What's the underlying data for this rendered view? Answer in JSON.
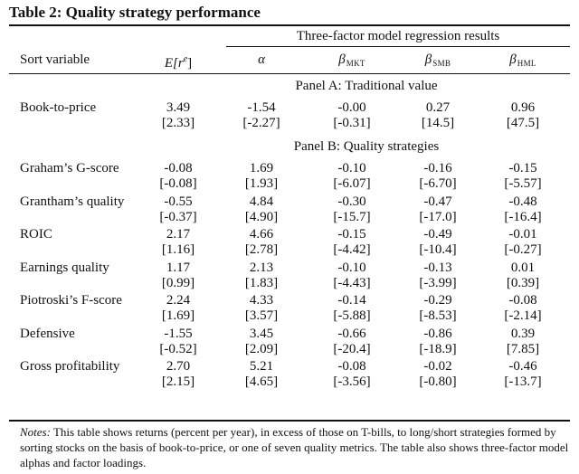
{
  "title": "Table 2: Quality strategy performance",
  "header": {
    "group_label": "Three-factor model regression results",
    "sort_label": "Sort variable",
    "col_er": "E[r",
    "col_er_sup": "e",
    "col_er_close": "]",
    "col_alpha": "α",
    "col_beta": "β",
    "col_mkt": "MKT",
    "col_smb": "SMB",
    "col_hml": "HML"
  },
  "panels": [
    {
      "title": "Panel A: Traditional value",
      "rows": [
        {
          "label": "Book-to-price",
          "values": [
            "3.49",
            "-1.54",
            "-0.00",
            "0.27",
            "0.96"
          ],
          "tstats": [
            "[2.33]",
            "[-2.27]",
            "[-0.31]",
            "[14.5]",
            "[47.5]"
          ]
        }
      ]
    },
    {
      "title": "Panel B: Quality strategies",
      "rows": [
        {
          "label": "Graham’s G-score",
          "values": [
            "-0.08",
            "1.69",
            "-0.10",
            "-0.16",
            "-0.15"
          ],
          "tstats": [
            "[-0.08]",
            "[1.93]",
            "[-6.07]",
            "[-6.70]",
            "[-5.57]"
          ]
        },
        {
          "label": "Grantham’s quality",
          "values": [
            "-0.55",
            "4.84",
            "-0.30",
            "-0.47",
            "-0.48"
          ],
          "tstats": [
            "[-0.37]",
            "[4.90]",
            "[-15.7]",
            "[-17.0]",
            "[-16.4]"
          ]
        },
        {
          "label": "ROIC",
          "values": [
            "2.17",
            "4.66",
            "-0.15",
            "-0.49",
            "-0.01"
          ],
          "tstats": [
            "[1.16]",
            "[2.78]",
            "[-4.42]",
            "[-10.4]",
            "[-0.27]"
          ]
        },
        {
          "label": "Earnings quality",
          "values": [
            "1.17",
            "2.13",
            "-0.10",
            "-0.13",
            "0.01"
          ],
          "tstats": [
            "[0.99]",
            "[1.83]",
            "[-4.43]",
            "[-3.99]",
            "[0.39]"
          ]
        },
        {
          "label": "Piotroski’s F-score",
          "values": [
            "2.24",
            "4.33",
            "-0.14",
            "-0.29",
            "-0.08"
          ],
          "tstats": [
            "[1.69]",
            "[3.57]",
            "[-5.88]",
            "[-8.53]",
            "[-2.14]"
          ]
        },
        {
          "label": "Defensive",
          "values": [
            "-1.55",
            "3.45",
            "-0.66",
            "-0.86",
            "0.39"
          ],
          "tstats": [
            "[-0.52]",
            "[2.09]",
            "[-20.4]",
            "[-18.9]",
            "[7.85]"
          ]
        },
        {
          "label": "Gross profitability",
          "values": [
            "2.70",
            "5.21",
            "-0.08",
            "-0.02",
            "-0.46"
          ],
          "tstats": [
            "[2.15]",
            "[4.65]",
            "[-3.56]",
            "[-0.80]",
            "[-13.7]"
          ]
        }
      ]
    }
  ],
  "notes": {
    "label": "Notes:",
    "text": " This table shows returns (percent per year), in excess of those on T-bills, to long/short strategies formed by sorting stocks on the basis of book-to-price, or one of seven quality metrics. The table also shows three-factor model alphas and factor loadings."
  }
}
